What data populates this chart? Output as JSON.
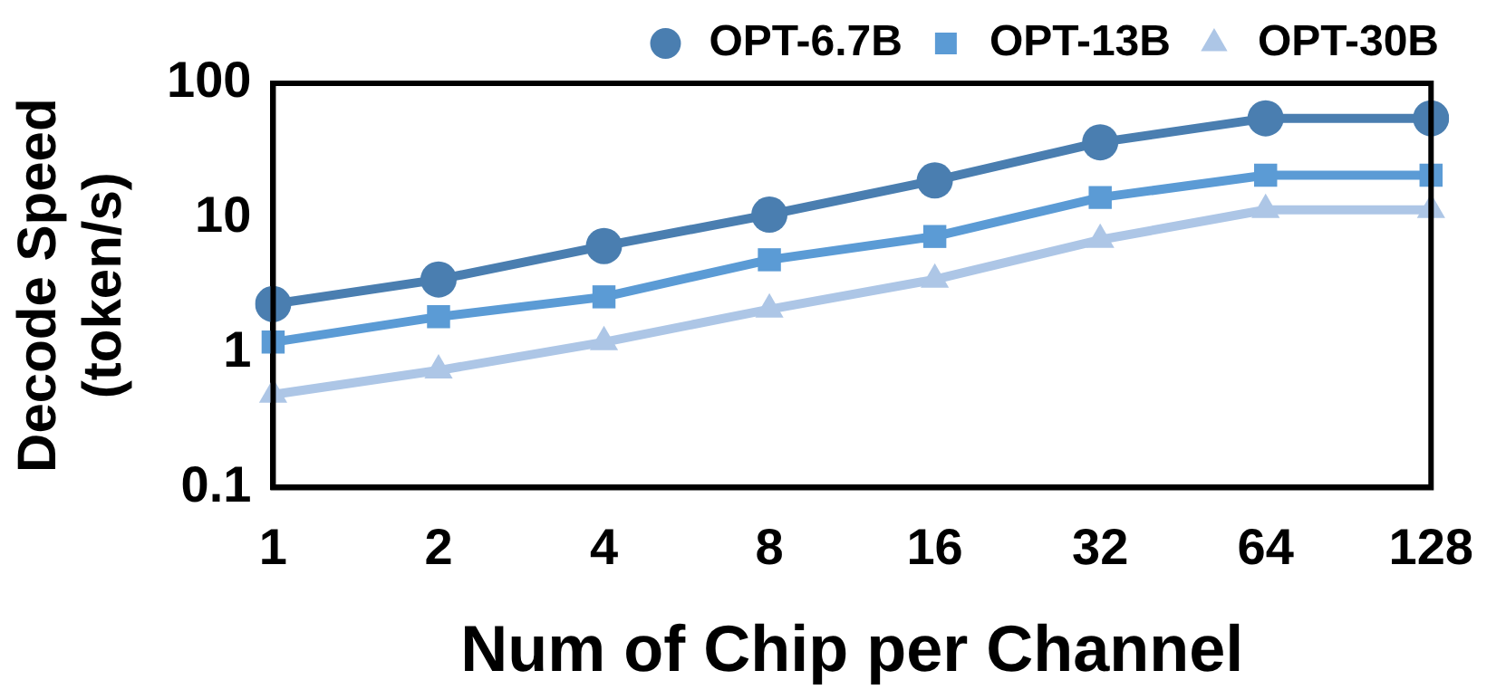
{
  "chart_data": {
    "type": "line",
    "xlabel": "Num of Chip per Channel",
    "ylabel": "Decode Speed (token/s)",
    "categories": [
      "1",
      "2",
      "4",
      "8",
      "16",
      "32",
      "64",
      "128"
    ],
    "series": [
      {
        "name": "OPT-6.7B",
        "color": "#4a7eb0",
        "marker": "circle",
        "values": [
          2.3,
          3.5,
          6.2,
          10.6,
          19,
          36.5,
          55,
          55
        ]
      },
      {
        "name": "OPT-13B",
        "color": "#5b9bd5",
        "marker": "square",
        "values": [
          1.2,
          1.85,
          2.6,
          4.9,
          7.3,
          14.2,
          20.8,
          20.8
        ]
      },
      {
        "name": "OPT-30B",
        "color": "#adc6e6",
        "marker": "triangle",
        "values": [
          0.49,
          0.74,
          1.2,
          2.1,
          3.5,
          6.9,
          11.5,
          11.5
        ]
      }
    ],
    "log": "y",
    "ylim": [
      0.1,
      100
    ],
    "yticks": [
      0.1,
      1,
      10,
      100
    ],
    "grid": false,
    "legend": "top"
  }
}
